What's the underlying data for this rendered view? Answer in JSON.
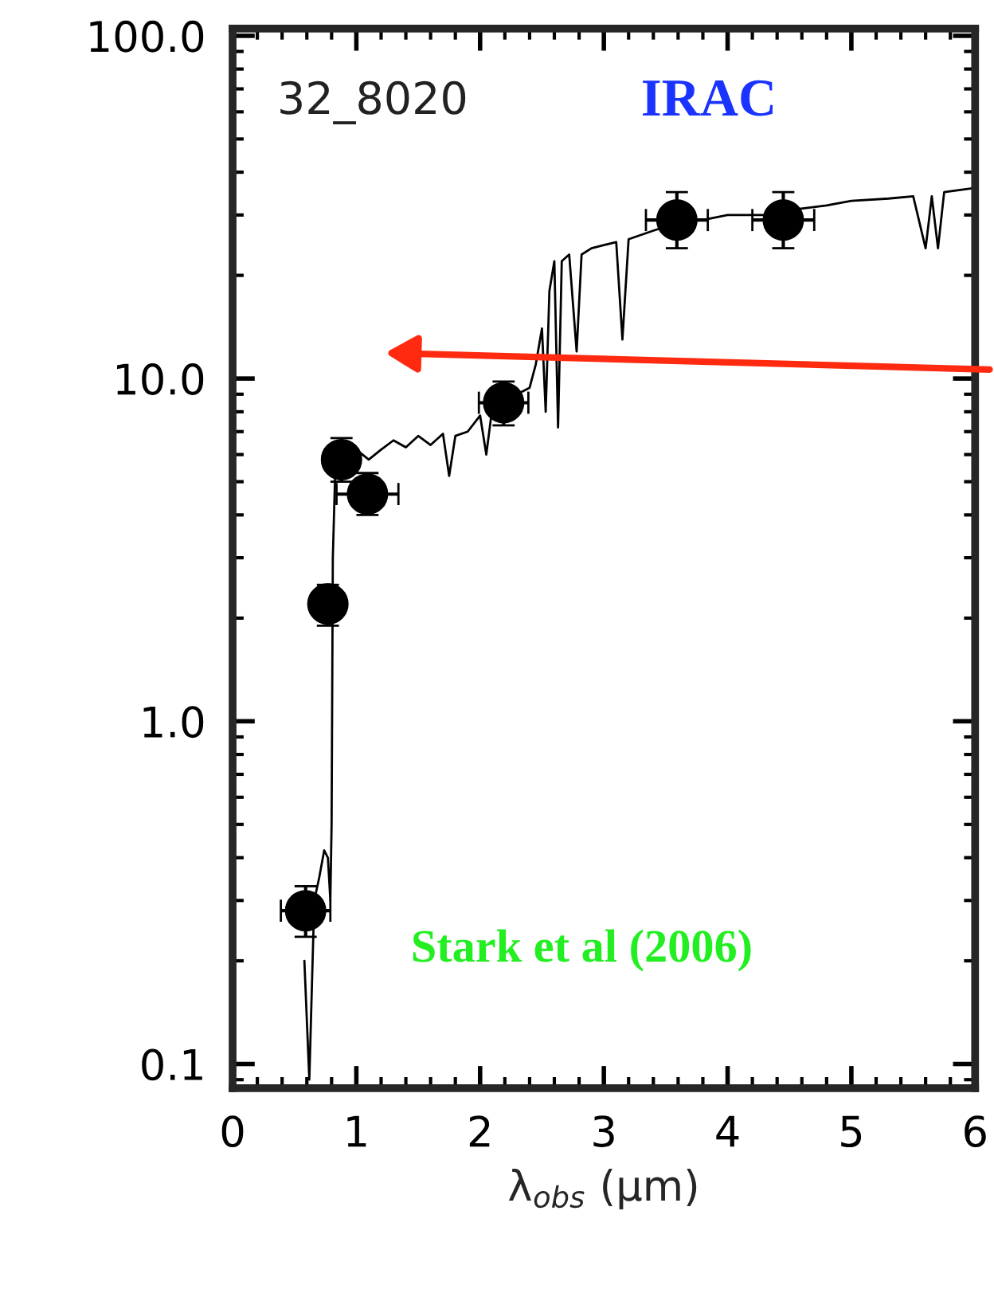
{
  "chart_data": {
    "type": "scatter",
    "xlabel": "λ$_{obs}$ (μm)",
    "log": "y",
    "xlim": [
      0,
      6
    ],
    "ylim": [
      0.085,
      105
    ],
    "xticks": [
      0,
      1,
      2,
      3,
      4,
      5,
      6
    ],
    "yticks": [
      {
        "value": 100,
        "label": "100.0"
      },
      {
        "value": 10,
        "label": "10.0"
      },
      {
        "value": 1,
        "label": "1.0"
      },
      {
        "value": 0.1,
        "label": "0.1"
      }
    ],
    "grid": false,
    "legend": false,
    "annotations": [
      "32_8020",
      "IRAC",
      "Stark et al (2006)"
    ],
    "series": [
      {
        "type": "line",
        "color": "#000000",
        "marker": "none",
        "line_style": "solid",
        "x": [
          0.58,
          0.62,
          0.66,
          0.7,
          0.74,
          0.77,
          0.79,
          0.8,
          0.81,
          0.83,
          0.9,
          1.0,
          1.1,
          1.2,
          1.3,
          1.4,
          1.5,
          1.6,
          1.7,
          1.75,
          1.8,
          1.9,
          2.0,
          2.05,
          2.1,
          2.2,
          2.3,
          2.4,
          2.45,
          2.5,
          2.53,
          2.56,
          2.6,
          2.63,
          2.66,
          2.72,
          2.78,
          2.82,
          2.9,
          3.0,
          3.1,
          3.15,
          3.2,
          3.4,
          3.6,
          3.8,
          4.0,
          4.3,
          4.5,
          4.8,
          5.0,
          5.3,
          5.5,
          5.6,
          5.65,
          5.7,
          5.75,
          6.0
        ],
        "values": [
          0.2,
          0.09,
          0.3,
          0.35,
          0.42,
          0.4,
          0.3,
          0.5,
          3,
          5.5,
          6.0,
          6.2,
          5.8,
          6.2,
          6.6,
          6.3,
          6.8,
          6.4,
          6.9,
          5.2,
          6.8,
          7.0,
          7.8,
          6.0,
          8.3,
          8.6,
          9.0,
          9.4,
          11,
          14,
          8,
          18,
          22,
          7.2,
          22,
          23,
          12,
          23,
          24,
          24.5,
          25,
          13,
          25.5,
          27,
          28.5,
          29,
          30,
          30,
          31,
          32,
          33,
          33.5,
          34,
          24,
          34,
          24,
          35,
          36
        ]
      },
      {
        "color": "#000000",
        "marker": "circle",
        "x": [
          0.59,
          0.77,
          0.88,
          1.09,
          2.19,
          3.59,
          4.45
        ],
        "values": [
          0.28,
          2.2,
          5.8,
          4.6,
          8.5,
          29,
          29
        ],
        "errors": [
          [
            0.235,
            0.33
          ],
          [
            1.9,
            2.5
          ],
          [
            5.0,
            6.7
          ],
          [
            4.0,
            5.3
          ],
          [
            7.3,
            9.8
          ],
          [
            24,
            35
          ],
          [
            24,
            35
          ]
        ],
        "xerrors": [
          0.2,
          0.13,
          0.12,
          0.25,
          0.2,
          0.25,
          0.25
        ]
      }
    ]
  }
}
